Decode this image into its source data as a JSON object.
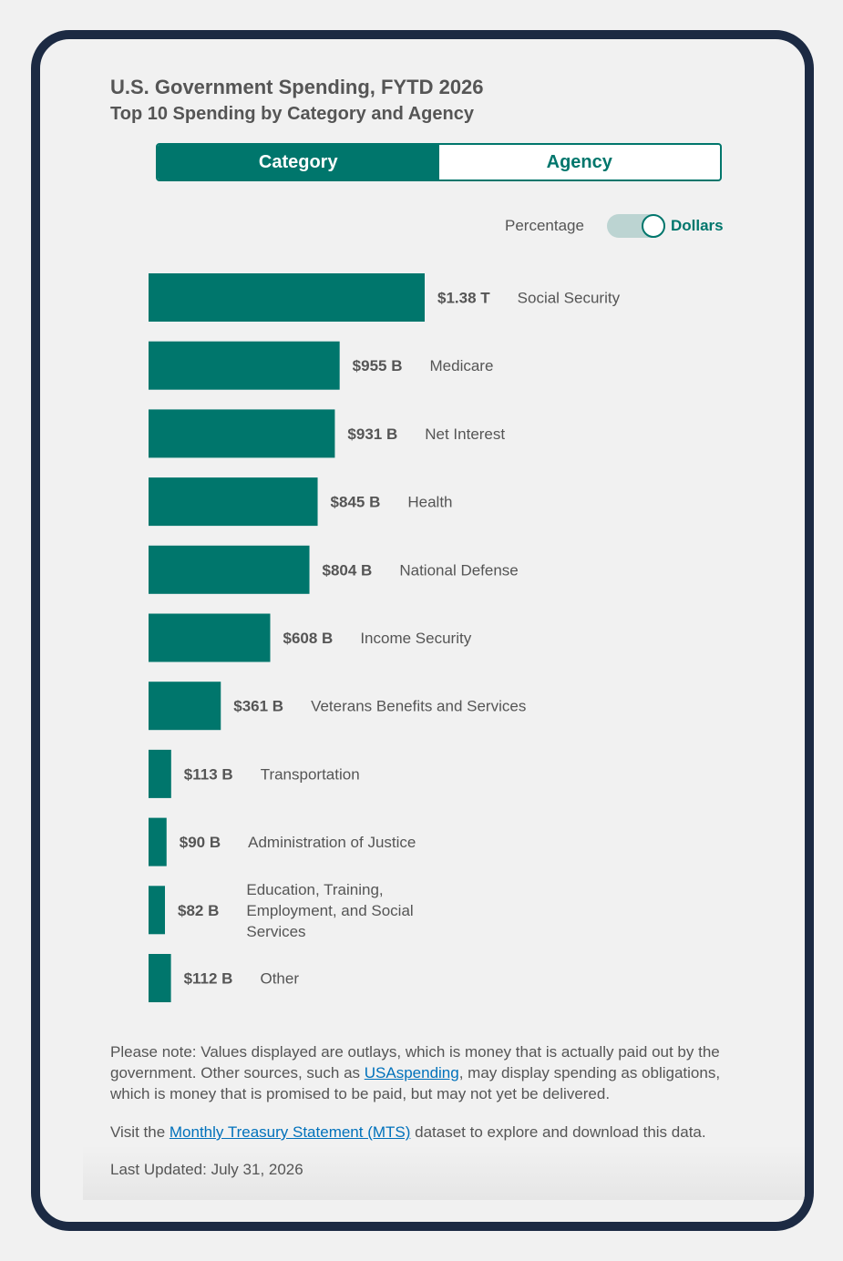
{
  "header": {
    "title": "U.S. Government Spending, FYTD 2026",
    "subtitle": "Top 10 Spending by Category and Agency"
  },
  "tabs": [
    {
      "label": "Category",
      "active": true
    },
    {
      "label": "Agency",
      "active": false
    }
  ],
  "toggle": {
    "left_label": "Percentage",
    "right_label": "Dollars",
    "selected": "Dollars"
  },
  "colors": {
    "bar": "#00766c",
    "accent": "#00766c",
    "link": "#0071bb",
    "frame": "#1c2a43"
  },
  "chart_data": {
    "type": "bar",
    "orientation": "horizontal",
    "unit": "USD billions",
    "categories": [
      "Social Security",
      "Medicare",
      "Net Interest",
      "Health",
      "National Defense",
      "Income Security",
      "Veterans Benefits and Services",
      "Transportation",
      "Administration of Justice",
      "Education, Training, Employment, and Social Services",
      "Other"
    ],
    "values": [
      1380,
      955,
      931,
      845,
      804,
      608,
      361,
      113,
      90,
      82,
      112
    ],
    "value_labels": [
      "$1.38 T",
      "$955 B",
      "$931 B",
      "$845 B",
      "$804 B",
      "$608 B",
      "$361 B",
      "$113 B",
      "$90 B",
      "$82 B",
      "$112 B"
    ],
    "category_lines": [
      [
        "Social Security"
      ],
      [
        "Medicare"
      ],
      [
        "Net Interest"
      ],
      [
        "Health"
      ],
      [
        "National Defense"
      ],
      [
        "Income Security"
      ],
      [
        "Veterans Benefits and Services"
      ],
      [
        "Transportation"
      ],
      [
        "Administration of Justice"
      ],
      [
        "Education, Training,",
        "Employment, and Social",
        "Services"
      ],
      [
        "Other"
      ]
    ]
  },
  "notes": {
    "note1_before": "Please note: Values displayed are outlays, which is money that is actually paid out by the government. Other sources, such as ",
    "note1_link": "USAspending",
    "note1_after": ", may display spending as obligations, which is money that is promised to be paid, but may not yet be delivered.",
    "note2_before": "Visit the ",
    "note2_link": "Monthly Treasury Statement (MTS)",
    "note2_after": " dataset to explore and download this data.",
    "last_updated": "Last Updated: July 31, 2026"
  }
}
